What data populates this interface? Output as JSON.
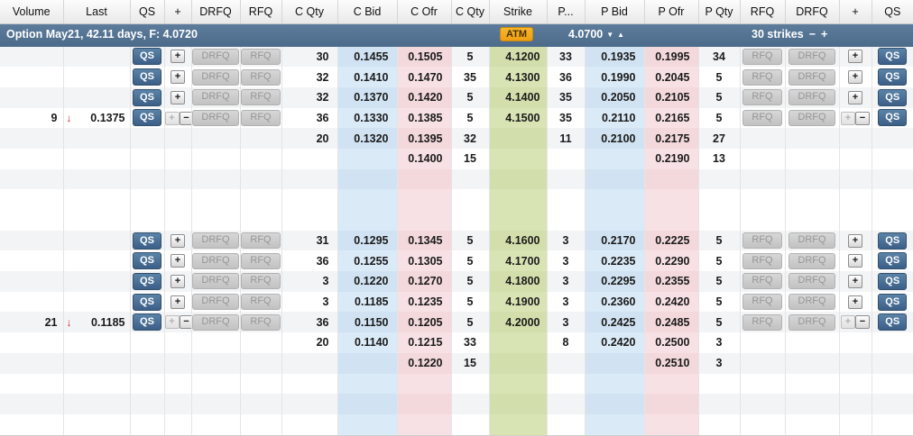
{
  "columns": [
    "Volume",
    "Last",
    "QS",
    "+",
    "DRFQ",
    "RFQ",
    "C Qty",
    "C Bid",
    "C Ofr",
    "C Qty",
    "Strike",
    "P...",
    "P Bid",
    "P Ofr",
    "P Qty",
    "RFQ",
    "DRFQ",
    "+",
    "QS"
  ],
  "banner": {
    "title": "Option May21, 42.11 days, F: 4.0720",
    "atm_label": "ATM",
    "price": "4.0700",
    "price_down": "▼",
    "price_up": "▲",
    "strikes_label": "30 strikes",
    "strikes_minus": "−",
    "strikes_plus": "+"
  },
  "button_labels": {
    "qs": "QS",
    "plus": "+",
    "minus": "−",
    "drfq": "DRFQ",
    "rfq": "RFQ"
  },
  "icons": {
    "last_down_arrow": "↓"
  },
  "colors": {
    "banner_blue": "#52718f",
    "qs_button_blue": "#46688c",
    "atm_orange": "#f2a71e",
    "bid_tint": "#dceaf6",
    "offer_tint": "#f7dfe2",
    "strike_tint": "#d7e2b5",
    "down_red": "#c1272d"
  },
  "rows": [
    {
      "volume": "",
      "last_dir": "",
      "last": "",
      "left_controls": "plus",
      "c_qty": "30",
      "c_bid": "0.1455",
      "c_ofr": "0.1505",
      "c_qty2": "5",
      "strike": "4.1200",
      "p_pos": "33",
      "p_bid": "0.1935",
      "p_ofr": "0.1995",
      "p_qty": "34",
      "right_controls": "plus"
    },
    {
      "volume": "",
      "last_dir": "",
      "last": "",
      "left_controls": "plus",
      "c_qty": "32",
      "c_bid": "0.1410",
      "c_ofr": "0.1470",
      "c_qty2": "35",
      "strike": "4.1300",
      "p_pos": "36",
      "p_bid": "0.1990",
      "p_ofr": "0.2045",
      "p_qty": "5",
      "right_controls": "plus"
    },
    {
      "volume": "",
      "last_dir": "",
      "last": "",
      "left_controls": "plus",
      "c_qty": "32",
      "c_bid": "0.1370",
      "c_ofr": "0.1420",
      "c_qty2": "5",
      "strike": "4.1400",
      "p_pos": "35",
      "p_bid": "0.2050",
      "p_ofr": "0.2105",
      "p_qty": "5",
      "right_controls": "plus"
    },
    {
      "volume": "9",
      "last_dir": "down",
      "last": "0.1375",
      "left_controls": "plusminus",
      "c_qty": "36",
      "c_bid": "0.1330",
      "c_ofr": "0.1385",
      "c_qty2": "5",
      "strike": "4.1500",
      "p_pos": "35",
      "p_bid": "0.2110",
      "p_ofr": "0.2165",
      "p_qty": "5",
      "right_controls": "plusminus"
    },
    {
      "volume": "",
      "last_dir": "",
      "last": "",
      "left_controls": "none",
      "c_qty": "20",
      "c_bid": "0.1320",
      "c_ofr": "0.1395",
      "c_qty2": "32",
      "strike": "",
      "p_pos": "11",
      "p_bid": "0.2100",
      "p_ofr": "0.2175",
      "p_qty": "27",
      "right_controls": "none"
    },
    {
      "volume": "",
      "last_dir": "",
      "last": "",
      "left_controls": "none",
      "c_qty": "",
      "c_bid": "",
      "c_ofr": "0.1400",
      "c_qty2": "15",
      "strike": "",
      "p_pos": "",
      "p_bid": "",
      "p_ofr": "0.2190",
      "p_qty": "13",
      "right_controls": "none"
    },
    {
      "volume": "",
      "last_dir": "",
      "last": "",
      "left_controls": "none",
      "c_qty": "",
      "c_bid": "",
      "c_ofr": "",
      "c_qty2": "",
      "strike": "",
      "p_pos": "",
      "p_bid": "",
      "p_ofr": "",
      "p_qty": "",
      "right_controls": "none"
    },
    {
      "volume": "",
      "last_dir": "",
      "last": "",
      "left_controls": "none",
      "c_qty": "",
      "c_bid": "",
      "c_ofr": "",
      "c_qty2": "",
      "strike": "",
      "p_pos": "",
      "p_bid": "",
      "p_ofr": "",
      "p_qty": "",
      "right_controls": "none"
    },
    {
      "volume": "",
      "last_dir": "",
      "last": "",
      "left_controls": "none",
      "c_qty": "",
      "c_bid": "",
      "c_ofr": "",
      "c_qty2": "",
      "strike": "",
      "p_pos": "",
      "p_bid": "",
      "p_ofr": "",
      "p_qty": "",
      "right_controls": "none"
    },
    {
      "volume": "",
      "last_dir": "",
      "last": "",
      "left_controls": "plus",
      "c_qty": "31",
      "c_bid": "0.1295",
      "c_ofr": "0.1345",
      "c_qty2": "5",
      "strike": "4.1600",
      "p_pos": "3",
      "p_bid": "0.2170",
      "p_ofr": "0.2225",
      "p_qty": "5",
      "right_controls": "plus"
    },
    {
      "volume": "",
      "last_dir": "",
      "last": "",
      "left_controls": "plus",
      "c_qty": "36",
      "c_bid": "0.1255",
      "c_ofr": "0.1305",
      "c_qty2": "5",
      "strike": "4.1700",
      "p_pos": "3",
      "p_bid": "0.2235",
      "p_ofr": "0.2290",
      "p_qty": "5",
      "right_controls": "plus"
    },
    {
      "volume": "",
      "last_dir": "",
      "last": "",
      "left_controls": "plus",
      "c_qty": "3",
      "c_bid": "0.1220",
      "c_ofr": "0.1270",
      "c_qty2": "5",
      "strike": "4.1800",
      "p_pos": "3",
      "p_bid": "0.2295",
      "p_ofr": "0.2355",
      "p_qty": "5",
      "right_controls": "plus"
    },
    {
      "volume": "",
      "last_dir": "",
      "last": "",
      "left_controls": "plus",
      "c_qty": "3",
      "c_bid": "0.1185",
      "c_ofr": "0.1235",
      "c_qty2": "5",
      "strike": "4.1900",
      "p_pos": "3",
      "p_bid": "0.2360",
      "p_ofr": "0.2420",
      "p_qty": "5",
      "right_controls": "plus"
    },
    {
      "volume": "21",
      "last_dir": "down",
      "last": "0.1185",
      "left_controls": "plusminus",
      "c_qty": "36",
      "c_bid": "0.1150",
      "c_ofr": "0.1205",
      "c_qty2": "5",
      "strike": "4.2000",
      "p_pos": "3",
      "p_bid": "0.2425",
      "p_ofr": "0.2485",
      "p_qty": "5",
      "right_controls": "plusminus"
    },
    {
      "volume": "",
      "last_dir": "",
      "last": "",
      "left_controls": "none",
      "c_qty": "20",
      "c_bid": "0.1140",
      "c_ofr": "0.1215",
      "c_qty2": "33",
      "strike": "",
      "p_pos": "8",
      "p_bid": "0.2420",
      "p_ofr": "0.2500",
      "p_qty": "3",
      "right_controls": "none"
    },
    {
      "volume": "",
      "last_dir": "",
      "last": "",
      "left_controls": "none",
      "c_qty": "",
      "c_bid": "",
      "c_ofr": "0.1220",
      "c_qty2": "15",
      "strike": "",
      "p_pos": "",
      "p_bid": "",
      "p_ofr": "0.2510",
      "p_qty": "3",
      "right_controls": "none"
    },
    {
      "volume": "",
      "last_dir": "",
      "last": "",
      "left_controls": "none",
      "c_qty": "",
      "c_bid": "",
      "c_ofr": "",
      "c_qty2": "",
      "strike": "",
      "p_pos": "",
      "p_bid": "",
      "p_ofr": "",
      "p_qty": "",
      "right_controls": "none"
    },
    {
      "volume": "",
      "last_dir": "",
      "last": "",
      "left_controls": "none",
      "c_qty": "",
      "c_bid": "",
      "c_ofr": "",
      "c_qty2": "",
      "strike": "",
      "p_pos": "",
      "p_bid": "",
      "p_ofr": "",
      "p_qty": "",
      "right_controls": "none"
    },
    {
      "volume": "",
      "last_dir": "",
      "last": "",
      "left_controls": "none",
      "c_qty": "",
      "c_bid": "",
      "c_ofr": "",
      "c_qty2": "",
      "strike": "",
      "p_pos": "",
      "p_bid": "",
      "p_ofr": "",
      "p_qty": "",
      "right_controls": "none"
    }
  ]
}
